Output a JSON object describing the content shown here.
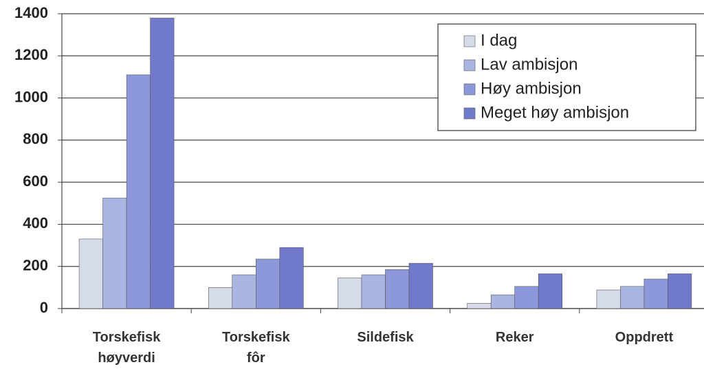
{
  "chart_data": {
    "type": "bar",
    "categories": [
      "Torskefisk høyverdi",
      "Torskefisk fôr",
      "Sildefisk",
      "Reker",
      "Oppdrett"
    ],
    "series": [
      {
        "name": "I dag",
        "color": "#d6dbea",
        "values": [
          330,
          100,
          145,
          25,
          88
        ]
      },
      {
        "name": "Lav ambisjon",
        "color": "#a9b6e2",
        "values": [
          525,
          160,
          160,
          65,
          105
        ]
      },
      {
        "name": "Høy ambisjon",
        "color": "#8d98da",
        "values": [
          1110,
          235,
          185,
          105,
          140
        ]
      },
      {
        "name": "Meget høy ambisjon",
        "color": "#7179ca",
        "values": [
          1380,
          290,
          215,
          165,
          165
        ]
      }
    ],
    "ylim": [
      0,
      1400
    ],
    "yticks": [
      0,
      200,
      400,
      600,
      800,
      1000,
      1200,
      1400
    ],
    "grid": true,
    "legend": "upper right"
  }
}
